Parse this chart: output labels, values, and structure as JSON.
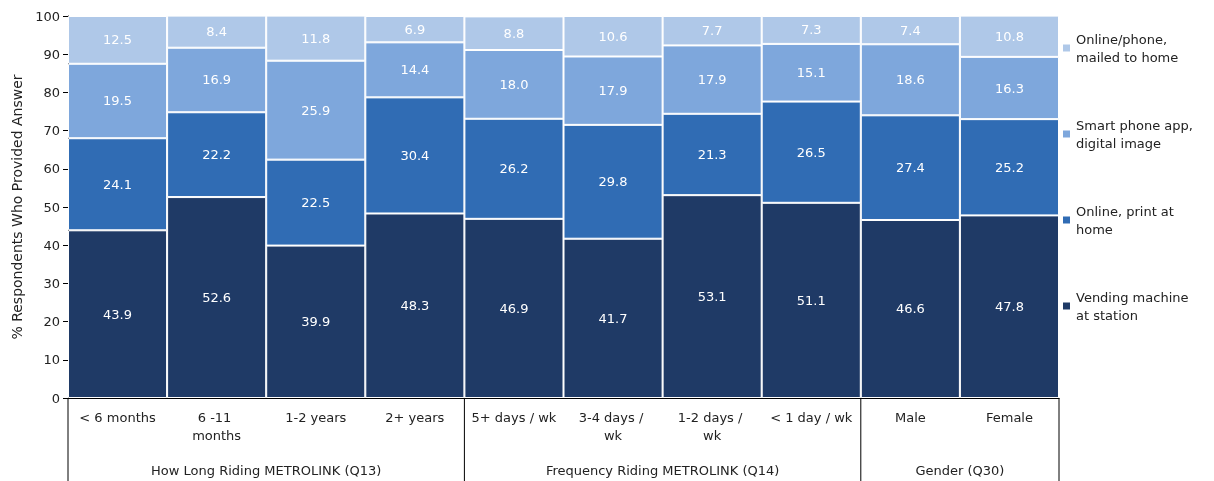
{
  "chart_data": {
    "type": "bar",
    "stacked": true,
    "ylabel": "% Respondents Who Provided Answer",
    "categories": [
      "< 6 months",
      "6 -11 months",
      "1-2 years",
      "2+ years",
      "5+ days / wk",
      "3-4 days / wk",
      "1-2 days / wk",
      "< 1 day / wk",
      "Male",
      "Female"
    ],
    "series": [
      {
        "name": "Vending machine at station",
        "color": "#1f3a66",
        "values": [
          43.9,
          52.6,
          39.9,
          48.3,
          46.9,
          41.7,
          53.1,
          51.1,
          46.6,
          47.8
        ],
        "value_labels": [
          "43.9",
          "52.6",
          "39.9",
          "48.3",
          "46.9",
          "41.7",
          "53.1",
          "51.1",
          "46.6",
          "47.8"
        ]
      },
      {
        "name": "Online, print at home",
        "color": "#306cb4",
        "values": [
          24.1,
          22.2,
          22.5,
          30.4,
          26.2,
          29.8,
          21.3,
          26.5,
          27.4,
          25.2
        ],
        "value_labels": [
          "24.1",
          "22.2",
          "22.5",
          "30.4",
          "26.2",
          "29.8",
          "21.3",
          "26.5",
          "27.4",
          "25.2"
        ]
      },
      {
        "name": "Smart phone app, digital image",
        "color": "#7ea7dc",
        "values": [
          19.5,
          16.9,
          25.9,
          14.4,
          18.0,
          17.9,
          17.9,
          15.1,
          18.6,
          16.3
        ],
        "value_labels": [
          "19.5",
          "16.9",
          "25.9",
          "14.4",
          "18.0",
          "17.9",
          "17.9",
          "15.1",
          "18.6",
          "16.3"
        ]
      },
      {
        "name": "Online/phone, mailed to home",
        "color": "#afc8e8",
        "values": [
          12.5,
          8.4,
          11.8,
          6.9,
          8.8,
          10.6,
          7.7,
          7.3,
          7.4,
          10.8
        ],
        "value_labels": [
          "12.5",
          "8.4",
          "11.8",
          "6.9",
          "8.8",
          "10.6",
          "7.7",
          "7.3",
          "7.4",
          "10.8"
        ]
      }
    ],
    "ylim": [
      0,
      100
    ],
    "yticks": [
      0,
      10,
      20,
      30,
      40,
      50,
      60,
      70,
      80,
      90,
      100
    ],
    "grid": false,
    "legend": "right",
    "annotations": [
      "How Long Riding METROLINK (Q13)",
      "Frequency Riding METROLINK (Q14)",
      "Gender (Q30)"
    ]
  }
}
